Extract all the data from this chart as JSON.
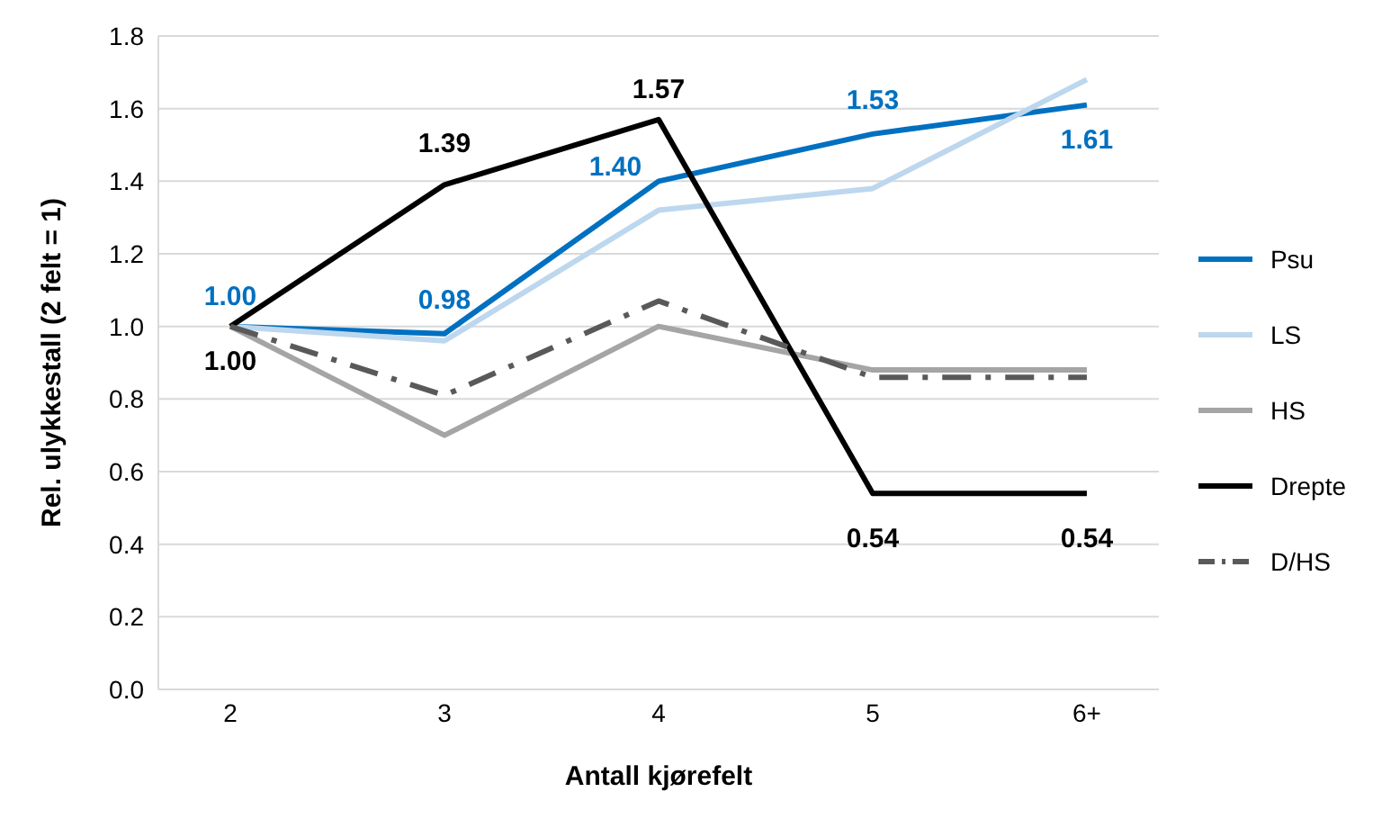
{
  "chart_data": {
    "type": "line",
    "xlabel": "Antall kjørefelt",
    "ylabel": "Rel. ulykkestall (2 felt = 1)",
    "categories": [
      "2",
      "3",
      "4",
      "5",
      "6+"
    ],
    "ylim": [
      0,
      1.8
    ],
    "yticks": [
      {
        "value": 0,
        "label": "0.0"
      },
      {
        "value": 0.2,
        "label": "0.2"
      },
      {
        "value": 0.4,
        "label": "0.4"
      },
      {
        "value": 0.6,
        "label": "0.6"
      },
      {
        "value": 0.8,
        "label": "0.8"
      },
      {
        "value": 1,
        "label": "1.0"
      },
      {
        "value": 1.2,
        "label": "1.2"
      },
      {
        "value": 1.4,
        "label": "1.4"
      },
      {
        "value": 1.6,
        "label": "1.6"
      },
      {
        "value": 1.8,
        "label": "1.8"
      }
    ],
    "grid": "y",
    "legend": "right",
    "marker": "none",
    "series": [
      {
        "name": "Psu",
        "color": "#0070c0",
        "values": [
          1.0,
          0.98,
          1.4,
          1.53,
          1.61
        ],
        "value_labels": [
          "1.00",
          "0.98",
          "1.40",
          "1.53",
          "1.61"
        ]
      },
      {
        "name": "LS",
        "color": "#bdd7ee",
        "values": [
          1.0,
          0.96,
          1.32,
          1.38,
          1.68
        ]
      },
      {
        "name": "HS",
        "color": "#a5a5a5",
        "values": [
          1.0,
          0.7,
          1.0,
          0.88,
          0.88
        ]
      },
      {
        "name": "Drepte",
        "color": "#000000",
        "values": [
          1.0,
          1.39,
          1.57,
          0.54,
          0.54
        ],
        "value_labels": [
          "1.00",
          "1.39",
          "1.57",
          "0.54",
          "0.54"
        ]
      },
      {
        "name": "D/HS",
        "color": "#595959",
        "values": [
          1.0,
          0.81,
          1.07,
          0.86,
          0.86
        ],
        "line_style": "dashed"
      }
    ]
  }
}
